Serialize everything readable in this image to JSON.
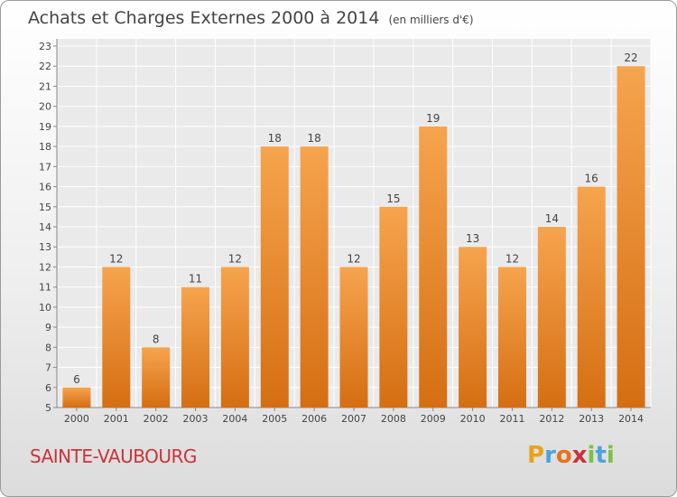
{
  "header": {
    "title": "Achats et Charges Externes 2000 à 2014",
    "unit": "(en milliers d'€)"
  },
  "footer": {
    "commune": "SAINTE-VAUBOURG",
    "brand": "Proxiti",
    "brand_colors": [
      "#e8a21c",
      "#4aa3df",
      "#e8721c",
      "#c8343a",
      "#7cc242",
      "#4aa3df",
      "#7cc242"
    ]
  },
  "colors": {
    "bar_top": "#f6a44e",
    "bar_bottom": "#d56e12",
    "grid": "#ffffff",
    "text": "#444444"
  },
  "chart_data": {
    "type": "bar",
    "title": "Achats et Charges Externes 2000 à 2014",
    "subtitle": "(en milliers d'€)",
    "categories": [
      "2000",
      "2001",
      "2002",
      "2003",
      "2004",
      "2005",
      "2006",
      "2007",
      "2008",
      "2009",
      "2010",
      "2011",
      "2012",
      "2013",
      "2014"
    ],
    "values": [
      6,
      12,
      8,
      11,
      12,
      18,
      18,
      12,
      15,
      19,
      13,
      12,
      14,
      16,
      22
    ],
    "ylim": [
      5,
      23
    ],
    "yticks": [
      5,
      6,
      7,
      8,
      9,
      10,
      11,
      12,
      13,
      14,
      15,
      16,
      17,
      18,
      19,
      20,
      21,
      22,
      23
    ],
    "grid": true,
    "data_labels": true,
    "xlabel": "",
    "ylabel": ""
  }
}
